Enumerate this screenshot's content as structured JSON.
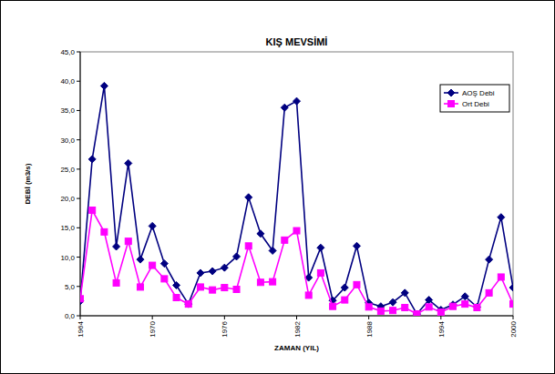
{
  "chart_data": {
    "type": "line",
    "title": "KIŞ MEVSİMİ",
    "x_label": "ZAMAN (YIL)",
    "y_label": "DEBİ (m3/s)",
    "x": [
      1964,
      1965,
      1966,
      1967,
      1968,
      1969,
      1970,
      1971,
      1972,
      1973,
      1974,
      1975,
      1976,
      1977,
      1978,
      1979,
      1980,
      1981,
      1982,
      1983,
      1984,
      1985,
      1986,
      1987,
      1988,
      1989,
      1990,
      1991,
      1992,
      1993,
      1994,
      1995,
      1996,
      1997,
      1998,
      1999,
      2000
    ],
    "series": [
      {
        "name": "AOŞ Debi",
        "color": "#000080",
        "marker": "diamond",
        "line_style": "solid",
        "values": [
          2.5,
          26.7,
          39.2,
          11.8,
          26.0,
          9.6,
          15.3,
          8.9,
          5.2,
          2.0,
          7.3,
          7.6,
          8.2,
          10.1,
          20.2,
          14.0,
          11.1,
          35.5,
          36.6,
          6.5,
          11.6,
          2.6,
          4.8,
          11.9,
          2.2,
          1.6,
          2.3,
          3.9,
          0.3,
          2.7,
          1.0,
          1.9,
          3.3,
          1.5,
          9.6,
          16.8,
          4.8
        ]
      },
      {
        "name": "Ort Debi",
        "color": "#ff00ff",
        "marker": "square",
        "line_style": "solid",
        "values": [
          2.9,
          18.0,
          14.3,
          5.6,
          12.7,
          4.9,
          8.6,
          6.3,
          3.1,
          2.0,
          4.9,
          4.4,
          4.8,
          4.5,
          11.9,
          5.7,
          5.8,
          12.9,
          14.5,
          3.5,
          7.3,
          1.6,
          2.7,
          5.3,
          1.5,
          0.8,
          0.9,
          1.4,
          0.3,
          1.5,
          0.6,
          1.6,
          2.0,
          1.4,
          3.9,
          6.6,
          2.0
        ]
      }
    ],
    "xlim": [
      1964,
      2000
    ],
    "xticks": [
      1964,
      1970,
      1976,
      1982,
      1988,
      1994,
      2000
    ],
    "ylim": [
      0,
      45
    ],
    "yticks": [
      {
        "value": 0,
        "label": "0,0"
      },
      {
        "value": 5,
        "label": "5,0"
      },
      {
        "value": 10,
        "label": "10,0"
      },
      {
        "value": 15,
        "label": "15,0"
      },
      {
        "value": 20,
        "label": "20,0"
      },
      {
        "value": 25,
        "label": "25,0"
      },
      {
        "value": 30,
        "label": "30,0"
      },
      {
        "value": 35,
        "label": "35,0"
      },
      {
        "value": 40,
        "label": "40,0"
      },
      {
        "value": 45,
        "label": "45,0"
      }
    ],
    "grid": false,
    "legend": "upper right"
  }
}
